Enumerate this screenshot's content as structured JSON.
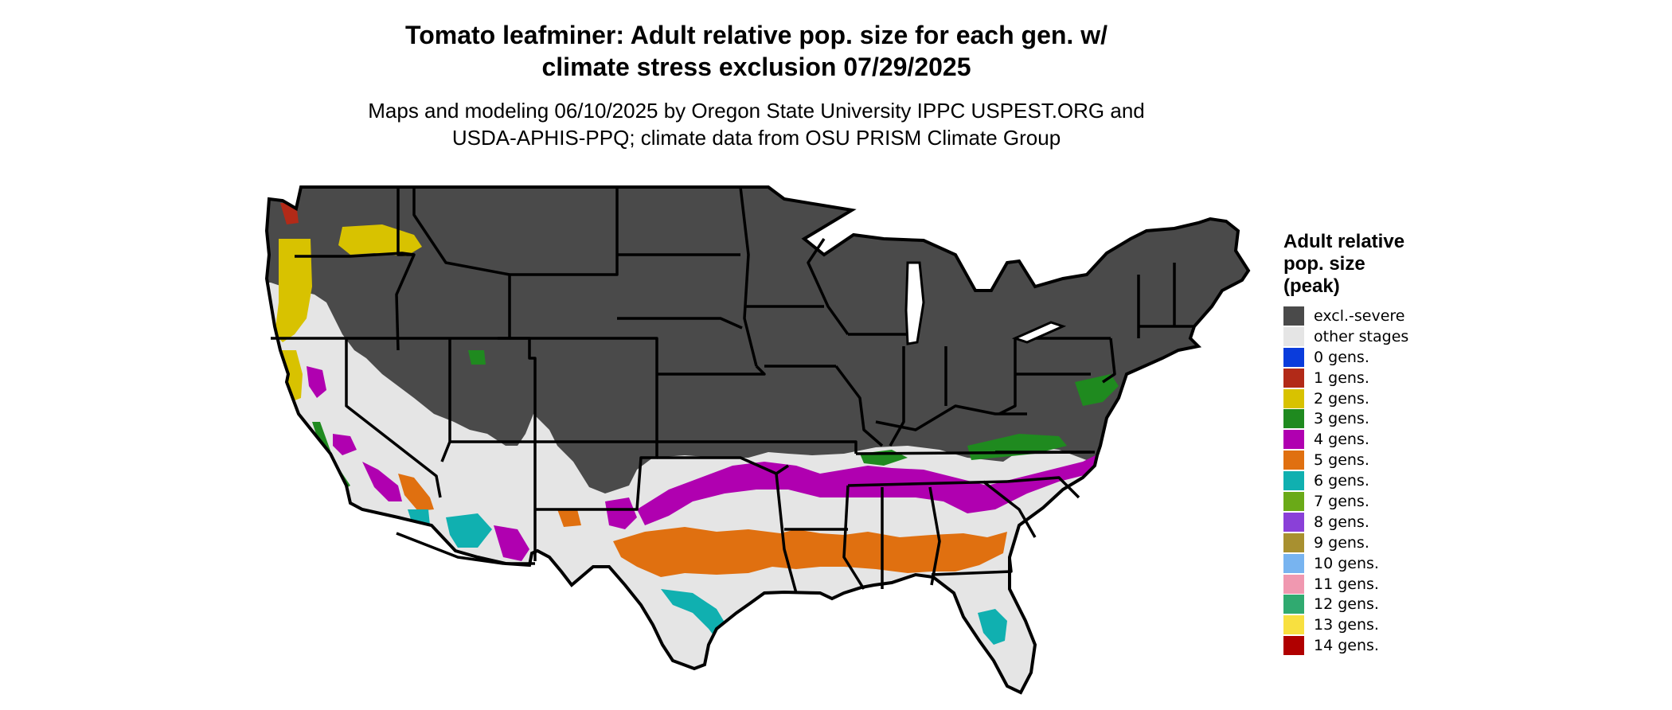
{
  "title_line1": "Tomato leafminer: Adult relative pop. size for each gen. w/",
  "title_line2": "climate stress exclusion 07/29/2025",
  "subtitle_line1": "Maps and modeling 06/10/2025 by Oregon State University IPPC USPEST.ORG and",
  "subtitle_line2": "USDA-APHIS-PPQ; climate data from OSU PRISM Climate Group",
  "legend": {
    "title_lines": [
      "Adult relative",
      "pop. size",
      "(peak)"
    ],
    "items": [
      {
        "label": "excl.-severe",
        "color": "#4a4a4a"
      },
      {
        "label": "other stages",
        "color": "#e5e5e5"
      },
      {
        "label": "0 gens.",
        "color": "#0a3cdc"
      },
      {
        "label": "1 gens.",
        "color": "#b22a18"
      },
      {
        "label": "2 gens.",
        "color": "#d8c200"
      },
      {
        "label": "3 gens.",
        "color": "#1f8a1f"
      },
      {
        "label": "4 gens.",
        "color": "#b000b0"
      },
      {
        "label": "5 gens.",
        "color": "#e07010"
      },
      {
        "label": "6 gens.",
        "color": "#10b0b0"
      },
      {
        "label": "7 gens.",
        "color": "#6aaa18"
      },
      {
        "label": "8 gens.",
        "color": "#8a40d8"
      },
      {
        "label": "9 gens.",
        "color": "#a89030"
      },
      {
        "label": "10 gens.",
        "color": "#78b4f0"
      },
      {
        "label": "11 gens.",
        "color": "#f098b0"
      },
      {
        "label": "12 gens.",
        "color": "#30aa70"
      },
      {
        "label": "13 gens.",
        "color": "#f8e040"
      },
      {
        "label": "14 gens.",
        "color": "#b00000"
      }
    ]
  },
  "colors": {
    "excluded": "#4a4a4a",
    "other": "#e5e5e5",
    "border": "#000000",
    "gen2": "#d8c200",
    "gen3": "#1f8a1f",
    "gen4": "#b000b0",
    "gen5": "#e07010",
    "gen6": "#10b0b0"
  }
}
